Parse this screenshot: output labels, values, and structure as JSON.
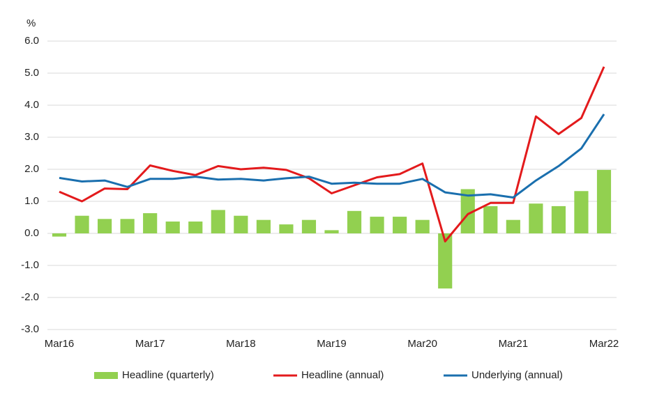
{
  "chart_data": {
    "type": "bar-line",
    "ylabel": "%",
    "categories": [
      "Mar16",
      null,
      null,
      null,
      "Mar17",
      null,
      null,
      null,
      "Mar18",
      null,
      null,
      null,
      "Mar19",
      null,
      null,
      null,
      "Mar20",
      null,
      null,
      null,
      "Mar21",
      null,
      null,
      null,
      "Mar22"
    ],
    "series": [
      {
        "name": "Headline (quarterly)",
        "kind": "bar",
        "color": "#92d050",
        "values": [
          -0.1,
          0.55,
          0.45,
          0.45,
          0.63,
          0.37,
          0.37,
          0.73,
          0.55,
          0.42,
          0.28,
          0.42,
          0.1,
          0.7,
          0.52,
          0.52,
          0.42,
          -1.72,
          1.38,
          0.85,
          0.42,
          0.93,
          0.85,
          1.32,
          1.98
        ]
      },
      {
        "name": "Headline (annual)",
        "kind": "line",
        "color": "#e31a1c",
        "values": [
          1.3,
          1.0,
          1.4,
          1.38,
          2.12,
          1.95,
          1.82,
          2.1,
          2.0,
          2.05,
          1.98,
          1.72,
          1.25,
          1.5,
          1.75,
          1.85,
          2.18,
          -0.25,
          0.6,
          0.95,
          0.95,
          3.65,
          3.1,
          3.6,
          5.2
        ]
      },
      {
        "name": "Underlying (annual)",
        "kind": "line",
        "color": "#1a6fae",
        "values": [
          1.73,
          1.62,
          1.65,
          1.45,
          1.7,
          1.7,
          1.77,
          1.68,
          1.7,
          1.65,
          1.72,
          1.77,
          1.55,
          1.58,
          1.55,
          1.55,
          1.7,
          1.28,
          1.18,
          1.22,
          1.12,
          1.65,
          2.1,
          2.65,
          3.72
        ]
      }
    ],
    "ylim": [
      -3,
      6
    ],
    "yticks": [
      {
        "value": -3,
        "label": "-3.0"
      },
      {
        "value": -2,
        "label": "-2.0"
      },
      {
        "value": -1,
        "label": "-1.0"
      },
      {
        "value": 0,
        "label": "0.0"
      },
      {
        "value": 1,
        "label": "1.0"
      },
      {
        "value": 2,
        "label": "2.0"
      },
      {
        "value": 3,
        "label": "3.0"
      },
      {
        "value": 4,
        "label": "4.0"
      },
      {
        "value": 5,
        "label": "5.0"
      },
      {
        "value": 6,
        "label": "6.0"
      }
    ],
    "grid": true,
    "legend": "bottom"
  }
}
